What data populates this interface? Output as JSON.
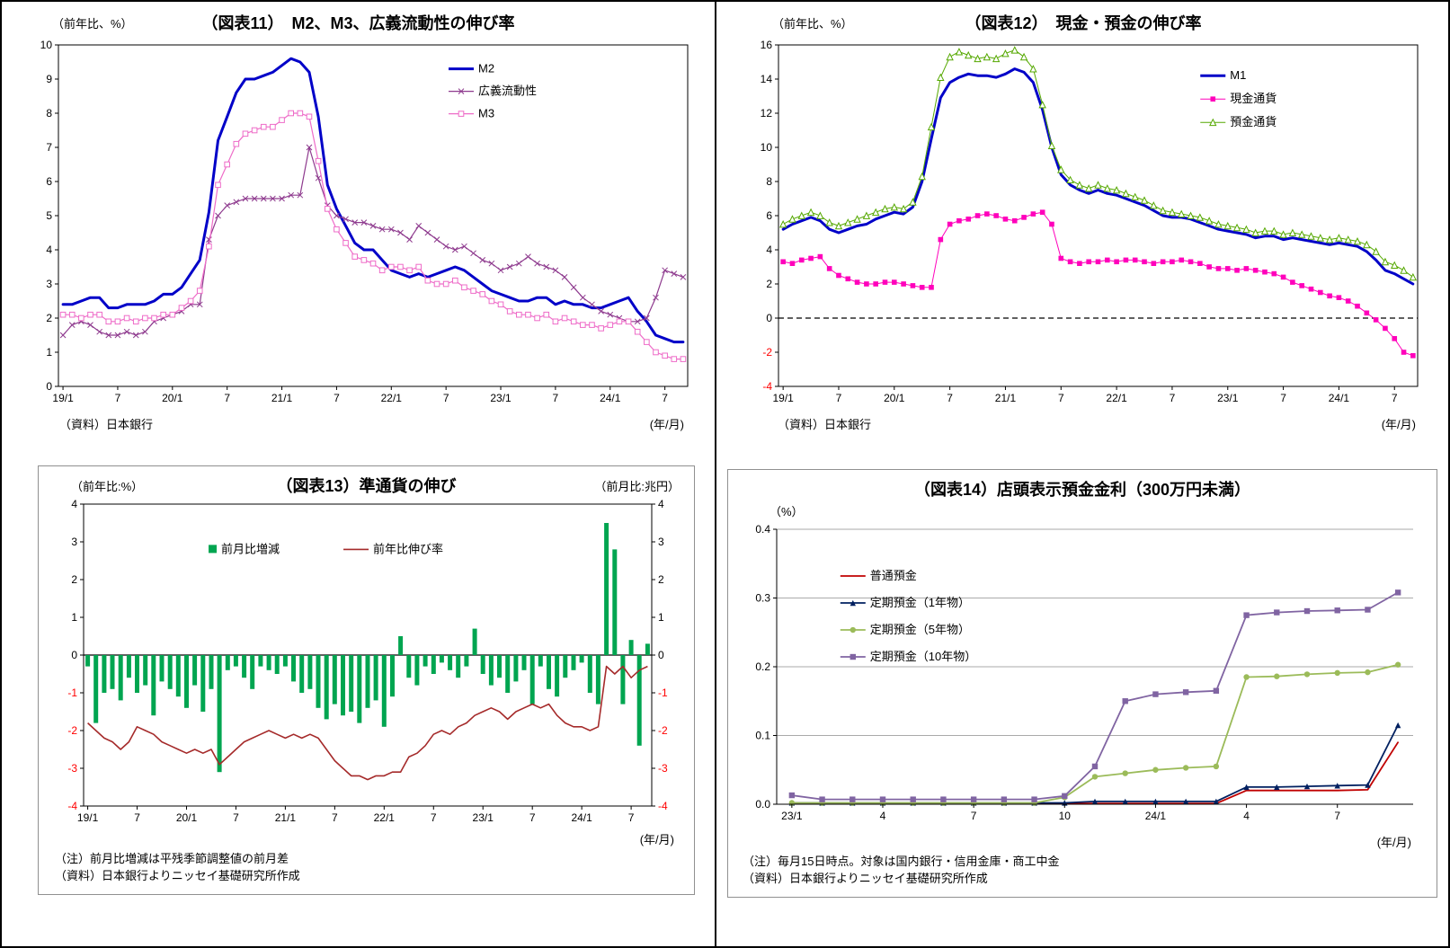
{
  "chart_data": [
    {
      "id": "fig11",
      "type": "line",
      "title": "（図表11）　M2、M3、広義流動性の伸び率",
      "y_axis_label": "（前年比、%）",
      "x_unit_label": "(年/月)",
      "source": "（資料）日本銀行",
      "frequency": "monthly",
      "x_start": "2019/1",
      "x_end": "2024/9",
      "n": 69,
      "ylim": [
        0,
        10
      ],
      "yticks": [
        0,
        1,
        2,
        3,
        4,
        5,
        6,
        7,
        8,
        9,
        10
      ],
      "x_tick_labels": [
        "19/1",
        "7",
        "20/1",
        "7",
        "21/1",
        "7",
        "22/1",
        "7",
        "23/1",
        "7",
        "24/1",
        "7"
      ],
      "x_tick_positions": [
        0,
        6,
        12,
        18,
        24,
        30,
        36,
        42,
        48,
        54,
        60,
        66
      ],
      "box": true,
      "legend": {
        "fx": 0.62,
        "fy": 0.07,
        "dir": "v",
        "gap": 25
      },
      "series": [
        {
          "name": "M2",
          "color": "#0000C8",
          "width": 3,
          "marker": "none",
          "values": [
            2.4,
            2.4,
            2.5,
            2.6,
            2.6,
            2.3,
            2.3,
            2.4,
            2.4,
            2.4,
            2.5,
            2.7,
            2.7,
            2.9,
            3.3,
            3.7,
            5.1,
            7.2,
            7.9,
            8.6,
            9.0,
            9.0,
            9.1,
            9.2,
            9.4,
            9.6,
            9.5,
            9.2,
            7.9,
            5.9,
            5.2,
            4.7,
            4.2,
            4.0,
            4.0,
            3.7,
            3.4,
            3.3,
            3.2,
            3.3,
            3.2,
            3.3,
            3.4,
            3.5,
            3.4,
            3.2,
            3.0,
            2.8,
            2.7,
            2.6,
            2.5,
            2.5,
            2.6,
            2.6,
            2.4,
            2.5,
            2.4,
            2.4,
            2.3,
            2.3,
            2.4,
            2.5,
            2.6,
            2.2,
            1.9,
            1.5,
            1.4,
            1.3,
            1.3
          ]
        },
        {
          "name": "広義流動性",
          "color": "#8E3A8E",
          "width": 1.2,
          "marker": "x",
          "marker_size": 3,
          "values": [
            1.5,
            1.8,
            1.9,
            1.8,
            1.6,
            1.5,
            1.5,
            1.6,
            1.5,
            1.6,
            1.9,
            2.0,
            2.1,
            2.2,
            2.4,
            2.4,
            4.3,
            5.0,
            5.3,
            5.4,
            5.5,
            5.5,
            5.5,
            5.5,
            5.5,
            5.6,
            5.6,
            7.0,
            6.1,
            5.3,
            5.0,
            4.9,
            4.8,
            4.8,
            4.7,
            4.6,
            4.6,
            4.5,
            4.3,
            4.7,
            4.5,
            4.3,
            4.1,
            4.0,
            4.1,
            3.9,
            3.7,
            3.6,
            3.4,
            3.5,
            3.6,
            3.8,
            3.6,
            3.5,
            3.4,
            3.2,
            2.9,
            2.6,
            2.4,
            2.2,
            2.1,
            2.0,
            1.9,
            1.9,
            2.0,
            2.6,
            3.4,
            3.3,
            3.2
          ]
        },
        {
          "name": "M3",
          "color": "#EE6CC8",
          "width": 1.2,
          "marker": "square-open",
          "marker_size": 2.8,
          "values": [
            2.1,
            2.1,
            2.0,
            2.1,
            2.1,
            1.9,
            1.9,
            2.0,
            1.9,
            2.0,
            2.0,
            2.1,
            2.1,
            2.3,
            2.5,
            2.8,
            4.1,
            5.9,
            6.5,
            7.1,
            7.4,
            7.5,
            7.6,
            7.6,
            7.8,
            8.0,
            8.0,
            7.9,
            6.6,
            5.2,
            4.6,
            4.2,
            3.8,
            3.7,
            3.6,
            3.4,
            3.5,
            3.5,
            3.4,
            3.5,
            3.1,
            3.0,
            3.0,
            3.1,
            2.9,
            2.8,
            2.7,
            2.5,
            2.4,
            2.2,
            2.1,
            2.1,
            2.0,
            2.1,
            1.9,
            2.0,
            1.9,
            1.8,
            1.8,
            1.7,
            1.8,
            1.9,
            1.9,
            1.6,
            1.3,
            1.0,
            0.9,
            0.8,
            0.8
          ]
        }
      ]
    },
    {
      "id": "fig12",
      "type": "line",
      "title": "（図表12）　現金・預金の伸び率",
      "y_axis_label": "（前年比、%）",
      "x_unit_label": "(年/月)",
      "source": "（資料）日本銀行",
      "frequency": "monthly",
      "x_start": "2019/1",
      "x_end": "2024/9",
      "n": 69,
      "ylim": [
        -4,
        16
      ],
      "yticks": [
        -4,
        -2,
        0,
        2,
        4,
        6,
        8,
        10,
        12,
        14,
        16
      ],
      "neg_red": true,
      "zero_line": "dashed",
      "x_tick_labels": [
        "19/1",
        "7",
        "20/1",
        "7",
        "21/1",
        "7",
        "22/1",
        "7",
        "23/1",
        "7",
        "24/1",
        "7"
      ],
      "x_tick_positions": [
        0,
        6,
        12,
        18,
        24,
        30,
        36,
        42,
        48,
        54,
        60,
        66
      ],
      "box": true,
      "legend": {
        "fx": 0.66,
        "fy": 0.09,
        "dir": "v",
        "gap": 26
      },
      "series": [
        {
          "name": "M1",
          "color": "#0000C8",
          "width": 3,
          "marker": "none",
          "values": [
            5.2,
            5.5,
            5.7,
            5.9,
            5.7,
            5.2,
            5.0,
            5.2,
            5.4,
            5.5,
            5.8,
            6.0,
            6.2,
            6.1,
            6.5,
            8.0,
            10.5,
            12.9,
            13.8,
            14.1,
            14.3,
            14.2,
            14.2,
            14.1,
            14.3,
            14.6,
            14.4,
            13.8,
            12.2,
            10.0,
            8.4,
            7.8,
            7.5,
            7.3,
            7.5,
            7.3,
            7.2,
            7.0,
            6.8,
            6.6,
            6.3,
            6.0,
            5.9,
            5.9,
            5.8,
            5.6,
            5.4,
            5.2,
            5.1,
            5.0,
            4.9,
            4.7,
            4.8,
            4.8,
            4.6,
            4.7,
            4.6,
            4.5,
            4.4,
            4.3,
            4.4,
            4.3,
            4.2,
            3.9,
            3.4,
            2.8,
            2.6,
            2.3,
            2.0
          ]
        },
        {
          "name": "現金通貨",
          "color": "#FF00BB",
          "width": 1,
          "marker": "square-fill",
          "marker_size": 2.8,
          "values": [
            3.3,
            3.2,
            3.4,
            3.5,
            3.6,
            2.9,
            2.5,
            2.3,
            2.1,
            2.0,
            2.0,
            2.1,
            2.1,
            2.0,
            1.9,
            1.8,
            1.8,
            4.6,
            5.5,
            5.7,
            5.8,
            6.0,
            6.1,
            6.0,
            5.8,
            5.7,
            5.9,
            6.1,
            6.2,
            5.5,
            3.5,
            3.3,
            3.2,
            3.3,
            3.3,
            3.4,
            3.3,
            3.4,
            3.4,
            3.3,
            3.2,
            3.3,
            3.3,
            3.4,
            3.3,
            3.2,
            3.0,
            2.9,
            2.9,
            2.8,
            2.9,
            2.8,
            2.7,
            2.6,
            2.4,
            2.1,
            1.9,
            1.7,
            1.5,
            1.3,
            1.2,
            1.0,
            0.7,
            0.3,
            -0.1,
            -0.6,
            -1.2,
            -2.0,
            -2.2
          ]
        },
        {
          "name": "預金通貨",
          "color": "#55A800",
          "width": 1,
          "marker": "triangle-open",
          "marker_size": 3.4,
          "values": [
            5.5,
            5.8,
            6.0,
            6.2,
            6.0,
            5.6,
            5.4,
            5.6,
            5.8,
            6.0,
            6.2,
            6.4,
            6.5,
            6.4,
            6.8,
            8.3,
            11.2,
            14.1,
            15.3,
            15.6,
            15.4,
            15.2,
            15.3,
            15.2,
            15.5,
            15.7,
            15.3,
            14.6,
            12.5,
            10.1,
            8.7,
            8.1,
            7.8,
            7.6,
            7.8,
            7.6,
            7.5,
            7.3,
            7.1,
            6.9,
            6.6,
            6.3,
            6.2,
            6.1,
            6.0,
            5.9,
            5.7,
            5.5,
            5.4,
            5.3,
            5.2,
            5.0,
            5.1,
            5.1,
            4.9,
            5.0,
            4.9,
            4.8,
            4.7,
            4.6,
            4.7,
            4.6,
            4.5,
            4.3,
            3.9,
            3.3,
            3.1,
            2.8,
            2.4
          ]
        }
      ]
    },
    {
      "id": "fig13",
      "type": "bar",
      "title": "（図表13）準通貨の伸び",
      "y_left_label": "（前年比:%）",
      "y_right_label": "（前月比:兆円）",
      "x_unit_label": "(年/月)",
      "notes": [
        "（注）前月比増減は平残季節調整値の前月差",
        "（資料）日本銀行よりニッセイ基礎研究所作成"
      ],
      "frequency": "monthly",
      "x_start": "2019/1",
      "x_end": "2024/9",
      "n": 69,
      "ylim": [
        -4,
        4
      ],
      "yticks": [
        -4,
        -3,
        -2,
        -1,
        0,
        1,
        2,
        3,
        4
      ],
      "neg_red": true,
      "zero_line": "solid",
      "right_axis": true,
      "x_tick_labels": [
        "19/1",
        "7",
        "20/1",
        "7",
        "21/1",
        "7",
        "22/1",
        "7",
        "23/1",
        "7",
        "24/1",
        "7"
      ],
      "x_tick_positions": [
        0,
        6,
        12,
        18,
        24,
        30,
        36,
        42,
        48,
        54,
        60,
        66
      ],
      "box": true,
      "legend": {
        "fx": 0.22,
        "fy": 0.15,
        "dir": "h",
        "gap": 150
      },
      "bar_series": {
        "name": "前月比増減",
        "color": "#00A550",
        "values": [
          -0.3,
          -1.8,
          -1.0,
          -0.9,
          -1.2,
          -0.6,
          -1.0,
          -0.8,
          -1.6,
          -0.7,
          -0.9,
          -1.1,
          -1.4,
          -0.8,
          -1.5,
          -0.9,
          -3.1,
          -0.4,
          -0.3,
          -0.6,
          -0.9,
          -0.3,
          -0.4,
          -0.5,
          -0.3,
          -0.7,
          -1.0,
          -0.9,
          -1.4,
          -1.7,
          -1.3,
          -1.6,
          -1.5,
          -1.8,
          -1.4,
          -1.2,
          -1.9,
          -1.1,
          0.5,
          -0.6,
          -0.8,
          -0.3,
          -0.5,
          -0.2,
          -0.4,
          -0.6,
          -0.3,
          0.7,
          -0.5,
          -0.8,
          -0.6,
          -1.0,
          -0.7,
          -0.4,
          -1.3,
          -0.3,
          -0.9,
          -1.1,
          -0.6,
          -0.4,
          -0.2,
          -1.0,
          -1.3,
          3.5,
          2.8,
          -1.3,
          0.4,
          -2.4,
          0.3
        ]
      },
      "line_series": {
        "name": "前年比伸び率",
        "color": "#A52A2A",
        "width": 1.6,
        "values": [
          -1.8,
          -2.0,
          -2.2,
          -2.3,
          -2.5,
          -2.3,
          -1.9,
          -2.0,
          -2.1,
          -2.3,
          -2.4,
          -2.5,
          -2.6,
          -2.5,
          -2.6,
          -2.5,
          -2.9,
          -2.7,
          -2.5,
          -2.3,
          -2.2,
          -2.1,
          -2.0,
          -2.1,
          -2.2,
          -2.1,
          -2.2,
          -2.1,
          -2.2,
          -2.5,
          -2.8,
          -3.0,
          -3.2,
          -3.2,
          -3.3,
          -3.2,
          -3.2,
          -3.1,
          -3.1,
          -2.7,
          -2.6,
          -2.4,
          -2.1,
          -2.0,
          -2.1,
          -1.9,
          -1.8,
          -1.6,
          -1.5,
          -1.4,
          -1.5,
          -1.7,
          -1.5,
          -1.4,
          -1.3,
          -1.4,
          -1.3,
          -1.6,
          -1.8,
          -1.9,
          -1.9,
          -2.0,
          -1.9,
          -0.3,
          -0.5,
          -0.3,
          -0.6,
          -0.4,
          -0.3
        ]
      }
    },
    {
      "id": "fig14",
      "type": "line",
      "title": "（図表14）店頭表示預金金利（300万円未満）",
      "y_axis_label": "（%）",
      "x_unit_label": "(年/月)",
      "notes": [
        "（注）毎月15日時点。対象は国内銀行・信用金庫・商工中金",
        "（資料）日本銀行よりニッセイ基礎研究所作成"
      ],
      "frequency": "monthly",
      "x_start": "2023/1",
      "x_end": "2024/9",
      "n": 21,
      "ylim": [
        0,
        0.4
      ],
      "yticks": [
        0,
        0.1,
        0.2,
        0.3,
        0.4
      ],
      "ytick_dp": 1,
      "h_gridlines": true,
      "box": false,
      "x_tick_labels": [
        "23/1",
        "4",
        "7",
        "10",
        "24/1",
        "4",
        "7"
      ],
      "x_tick_positions": [
        0,
        3,
        6,
        9,
        12,
        15,
        18
      ],
      "legend": {
        "fx": 0.1,
        "fy": 0.17,
        "dir": "v",
        "gap": 30
      },
      "series": [
        {
          "name": "普通預金",
          "color": "#C00000",
          "width": 1.8,
          "marker": "none",
          "values": [
            0.001,
            0.001,
            0.001,
            0.001,
            0.001,
            0.001,
            0.001,
            0.001,
            0.001,
            0.001,
            0.001,
            0.001,
            0.001,
            0.001,
            0.001,
            0.02,
            0.02,
            0.02,
            0.02,
            0.021,
            0.09
          ]
        },
        {
          "name": "定期預金（1年物）",
          "color": "#002060",
          "width": 1.8,
          "marker": "triangle-fill",
          "marker_size": 3.2,
          "values": [
            0.002,
            0.002,
            0.002,
            0.002,
            0.002,
            0.002,
            0.002,
            0.002,
            0.002,
            0.002,
            0.004,
            0.004,
            0.004,
            0.004,
            0.004,
            0.025,
            0.025,
            0.026,
            0.027,
            0.028,
            0.115
          ]
        },
        {
          "name": "定期預金（5年物）",
          "color": "#9BBB59",
          "width": 1.8,
          "marker": "circle-fill",
          "marker_size": 3.2,
          "values": [
            0.002,
            0.002,
            0.002,
            0.002,
            0.002,
            0.002,
            0.002,
            0.002,
            0.002,
            0.01,
            0.04,
            0.045,
            0.05,
            0.053,
            0.055,
            0.185,
            0.186,
            0.189,
            0.191,
            0.192,
            0.203
          ]
        },
        {
          "name": "定期預金（10年物）",
          "color": "#8064A2",
          "width": 1.8,
          "marker": "square-fill",
          "marker_size": 3.2,
          "values": [
            0.013,
            0.007,
            0.007,
            0.007,
            0.007,
            0.007,
            0.007,
            0.007,
            0.007,
            0.012,
            0.055,
            0.15,
            0.16,
            0.163,
            0.165,
            0.275,
            0.279,
            0.281,
            0.282,
            0.283,
            0.308
          ]
        }
      ]
    }
  ]
}
